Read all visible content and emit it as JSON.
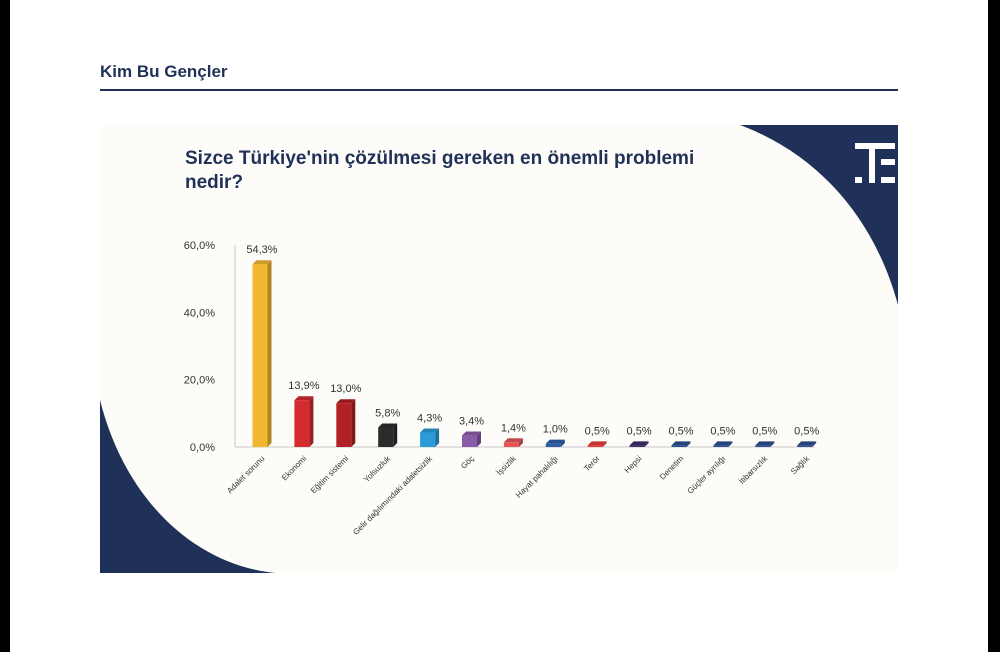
{
  "header": {
    "title": "Kim Bu Gençler"
  },
  "colors": {
    "navy": "#1f3158",
    "background": "#fefcf8"
  },
  "logo": {
    "icon": "t-logo-icon"
  },
  "chart_data": {
    "type": "bar",
    "title": "Sizce Türkiye'nin çözülmesi gereken en önemli problemi nedir?",
    "xlabel": "",
    "ylabel": "",
    "ylim": [
      0,
      60
    ],
    "yticks": [
      "0,0%",
      "20,0%",
      "40,0%",
      "60,0%"
    ],
    "ytick_values": [
      0,
      20,
      40,
      60
    ],
    "grid": false,
    "categories": [
      "Adalet sorunu",
      "Ekonomi",
      "Eğitim sistemi",
      "Yolsuzluk",
      "Gelir dağılımındaki adaletsizlik",
      "Göç",
      "İşsizlik",
      "Hayat pahalılığı",
      "Terör",
      "Hepsi",
      "Denetim",
      "Güçler ayrılığı",
      "İtibarsızlık",
      "Sağlık"
    ],
    "values": [
      54.3,
      13.9,
      13.0,
      5.8,
      4.3,
      3.4,
      1.4,
      1.0,
      0.5,
      0.5,
      0.5,
      0.5,
      0.5,
      0.5
    ],
    "value_labels": [
      "54,3%",
      "13,9%",
      "13,0%",
      "5,8%",
      "4,3%",
      "3,4%",
      "1,4%",
      "1,0%",
      "0,5%",
      "0,5%",
      "0,5%",
      "0,5%",
      "0,5%",
      "0,5%"
    ],
    "bar_colors": [
      "#f2b731",
      "#d42b2e",
      "#b32025",
      "#2b2b2b",
      "#2a9bd8",
      "#8b5ba8",
      "#e35556",
      "#2a5fa8",
      "#e33b3b",
      "#3e2a6b",
      "#2b4f8f",
      "#2b4f8f",
      "#2b4f8f",
      "#2b4f8f"
    ]
  }
}
